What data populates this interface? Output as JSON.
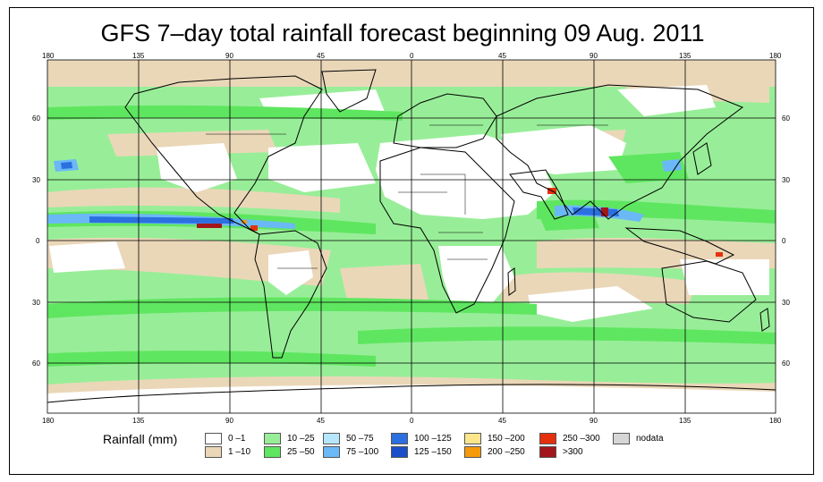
{
  "title": "GFS 7–day total rainfall forecast beginning 09 Aug. 2011",
  "map": {
    "lon_ticks": [
      "180",
      "135",
      "90",
      "45",
      "0",
      "45",
      "90",
      "135",
      "180"
    ],
    "lat_ticks": [
      "60",
      "30",
      "0",
      "30",
      "60"
    ]
  },
  "legend": {
    "title": "Rainfall (mm)",
    "items": [
      {
        "label": "0 –1",
        "color": "#ffffff"
      },
      {
        "label": "1 –10",
        "color": "#ead7b8"
      },
      {
        "label": "10 –25",
        "color": "#98ee98"
      },
      {
        "label": "25 –50",
        "color": "#5fe660"
      },
      {
        "label": "50 –75",
        "color": "#b6e6fb"
      },
      {
        "label": "75 –100",
        "color": "#6bb8f6"
      },
      {
        "label": "100 –125",
        "color": "#2b6fe0"
      },
      {
        "label": "125 –150",
        "color": "#1a4fc9"
      },
      {
        "label": "150 –200",
        "color": "#fde58c"
      },
      {
        "label": "200 –250",
        "color": "#f59a0b"
      },
      {
        "label": "250 –300",
        "color": "#e5300e"
      },
      {
        "label": ">300",
        "color": "#a3161b"
      },
      {
        "label": "nodata",
        "color": "#d6d6d6"
      }
    ]
  }
}
